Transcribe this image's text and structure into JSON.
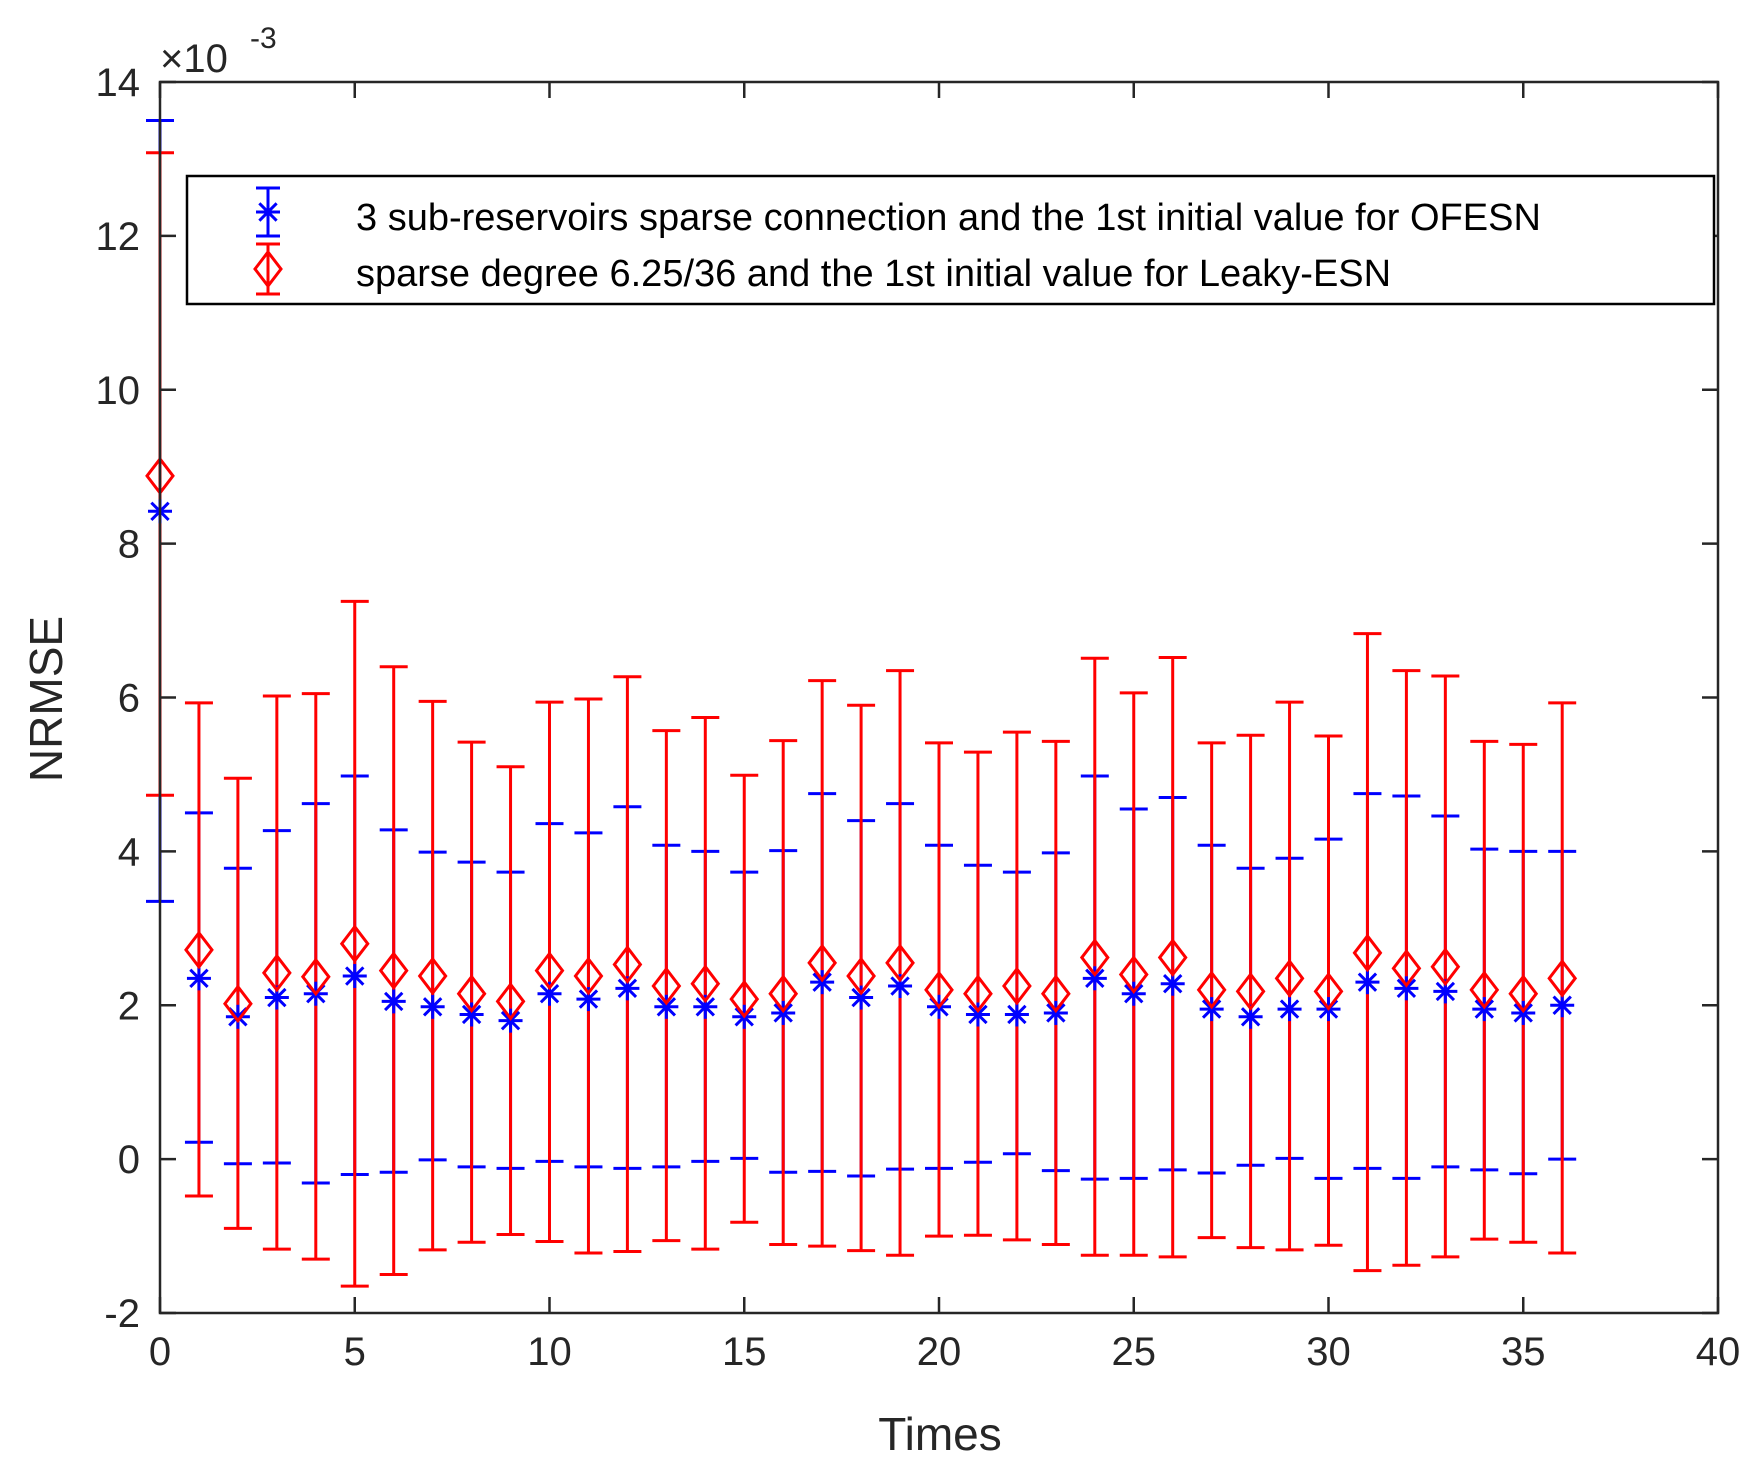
{
  "chart_data": {
    "type": "errorbar",
    "title": "",
    "xlabel": "Times",
    "ylabel": "NRMSE",
    "y_exponent_label": "×10",
    "y_exponent_power": "-3",
    "xlim": [
      0,
      40
    ],
    "ylim": [
      -2,
      14
    ],
    "xticks": [
      0,
      5,
      10,
      15,
      20,
      25,
      30,
      35,
      40
    ],
    "yticks": [
      -2,
      0,
      2,
      4,
      6,
      8,
      10,
      12,
      14
    ],
    "xtick_labels": [
      "0",
      "5",
      "10",
      "15",
      "20",
      "25",
      "30",
      "35",
      "40"
    ],
    "ytick_labels": [
      "-2",
      "0",
      "2",
      "4",
      "6",
      "8",
      "10",
      "12",
      "14"
    ],
    "legend_position": "top",
    "x": [
      0,
      1,
      2,
      3,
      4,
      5,
      6,
      7,
      8,
      9,
      10,
      11,
      12,
      13,
      14,
      15,
      16,
      17,
      18,
      19,
      20,
      21,
      22,
      23,
      24,
      25,
      26,
      27,
      28,
      29,
      30,
      31,
      32,
      33,
      34,
      35,
      36
    ],
    "series": [
      {
        "name": "3 sub-reservoirs sparse connection and the 1st initial value for OFESN",
        "color": "#0000ff",
        "marker": "asterisk",
        "mean": [
          8.42,
          2.35,
          1.85,
          2.1,
          2.15,
          2.38,
          2.05,
          1.98,
          1.88,
          1.8,
          2.15,
          2.08,
          2.22,
          1.98,
          1.98,
          1.85,
          1.9,
          2.3,
          2.1,
          2.25,
          1.98,
          1.88,
          1.88,
          1.9,
          2.35,
          2.15,
          2.28,
          1.95,
          1.85,
          1.95,
          1.95,
          2.3,
          2.22,
          2.18,
          1.95,
          1.9,
          2.0
        ],
        "upper": [
          13.5,
          4.5,
          3.78,
          4.27,
          4.62,
          4.98,
          4.28,
          3.99,
          3.86,
          3.73,
          4.36,
          4.24,
          4.58,
          4.08,
          4.0,
          3.73,
          4.01,
          4.75,
          4.4,
          4.62,
          4.08,
          3.82,
          3.73,
          3.98,
          4.98,
          4.55,
          4.7,
          4.08,
          3.78,
          3.91,
          4.16,
          4.75,
          4.72,
          4.46,
          4.03,
          4.0,
          4.0
        ],
        "lower": [
          3.35,
          0.22,
          -0.06,
          -0.05,
          -0.31,
          -0.2,
          -0.17,
          -0.01,
          -0.1,
          -0.12,
          -0.03,
          -0.1,
          -0.12,
          -0.1,
          -0.03,
          0.01,
          -0.17,
          -0.16,
          -0.22,
          -0.13,
          -0.12,
          -0.04,
          0.07,
          -0.15,
          -0.26,
          -0.25,
          -0.14,
          -0.18,
          -0.08,
          0.01,
          -0.25,
          -0.12,
          -0.25,
          -0.1,
          -0.14,
          -0.19,
          0.0
        ]
      },
      {
        "name": "sparse degree 6.25/36 and the 1st initial value for Leaky-ESN",
        "color": "#ff0000",
        "marker": "diamond",
        "mean": [
          8.88,
          2.72,
          2.02,
          2.42,
          2.37,
          2.8,
          2.45,
          2.38,
          2.15,
          2.05,
          2.45,
          2.38,
          2.53,
          2.25,
          2.28,
          2.08,
          2.15,
          2.55,
          2.38,
          2.55,
          2.2,
          2.15,
          2.25,
          2.15,
          2.62,
          2.4,
          2.62,
          2.2,
          2.18,
          2.35,
          2.18,
          2.68,
          2.48,
          2.5,
          2.2,
          2.15,
          2.35
        ],
        "upper": [
          13.08,
          5.93,
          4.95,
          6.02,
          6.05,
          7.25,
          6.4,
          5.95,
          5.42,
          5.1,
          5.94,
          5.98,
          6.27,
          5.57,
          5.74,
          4.99,
          5.44,
          6.22,
          5.9,
          6.35,
          5.41,
          5.29,
          5.55,
          5.43,
          6.51,
          6.06,
          6.52,
          5.41,
          5.51,
          5.94,
          5.5,
          6.83,
          6.35,
          6.28,
          5.43,
          5.39,
          5.93
        ],
        "lower": [
          4.73,
          -0.48,
          -0.9,
          -1.17,
          -1.3,
          -1.65,
          -1.5,
          -1.18,
          -1.08,
          -0.98,
          -1.07,
          -1.22,
          -1.2,
          -1.06,
          -1.17,
          -0.82,
          -1.11,
          -1.13,
          -1.19,
          -1.25,
          -1.0,
          -0.99,
          -1.05,
          -1.11,
          -1.25,
          -1.25,
          -1.27,
          -1.02,
          -1.15,
          -1.18,
          -1.12,
          -1.45,
          -1.38,
          -1.27,
          -1.04,
          -1.08,
          -1.22
        ]
      }
    ]
  }
}
